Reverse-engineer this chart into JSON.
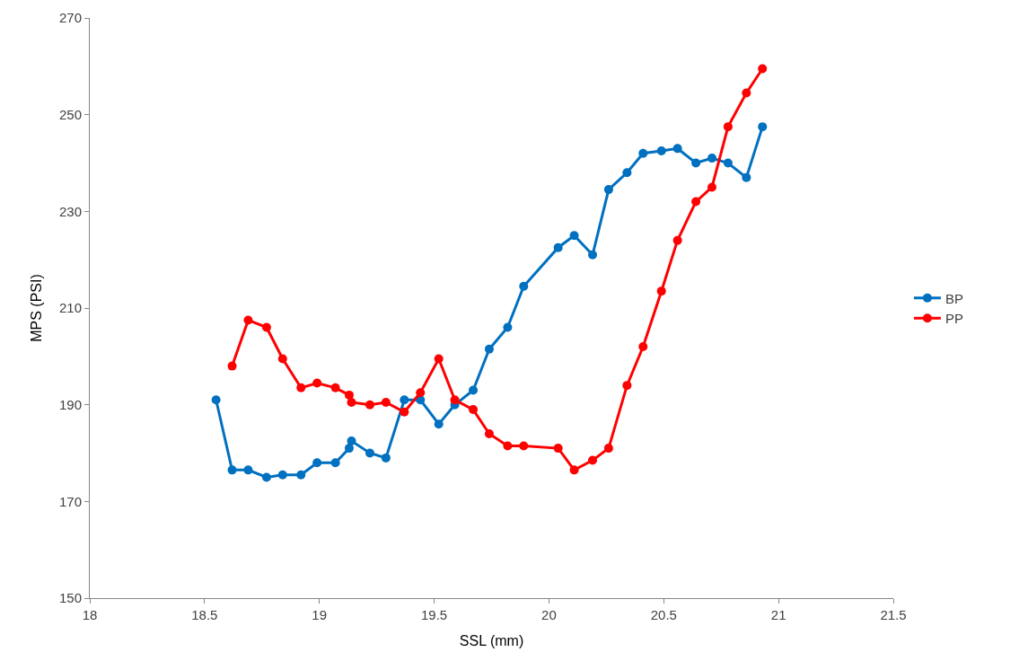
{
  "chart_data": {
    "type": "line",
    "xlabel": "SSL (mm)",
    "ylabel": "MPS (PSI)",
    "xlim": [
      18,
      21.5
    ],
    "xticks": [
      18,
      18.5,
      19,
      19.5,
      20,
      20.5,
      21,
      21.5
    ],
    "ylim": [
      150,
      270
    ],
    "yticks": [
      150,
      170,
      190,
      210,
      230,
      250,
      270
    ],
    "grid": false,
    "legend": "right",
    "marker": "circle",
    "line_style": "solid",
    "series": [
      {
        "name": "BP",
        "color": "#0070c0",
        "x": [
          18.55,
          18.62,
          18.69,
          18.77,
          18.84,
          18.92,
          18.99,
          19.07,
          19.13,
          19.14,
          19.22,
          19.29,
          19.37,
          19.44,
          19.52,
          19.59,
          19.67,
          19.74,
          19.82,
          19.89,
          20.04,
          20.11,
          20.19,
          20.26,
          20.34,
          20.41,
          20.49,
          20.56,
          20.64,
          20.71,
          20.78,
          20.86,
          20.93
        ],
        "values": [
          191,
          176.5,
          176.5,
          175,
          175.5,
          175.5,
          178,
          178,
          181,
          182.5,
          180,
          179,
          191,
          191,
          186,
          190,
          193,
          201.5,
          206,
          214.5,
          222.5,
          225,
          221,
          234.5,
          238,
          242,
          242.5,
          243,
          240,
          241,
          240,
          237,
          247.5
        ]
      },
      {
        "name": "PP",
        "color": "#ff0000",
        "x": [
          18.62,
          18.69,
          18.77,
          18.84,
          18.92,
          18.99,
          19.07,
          19.13,
          19.14,
          19.22,
          19.29,
          19.37,
          19.44,
          19.52,
          19.59,
          19.67,
          19.74,
          19.82,
          19.89,
          20.04,
          20.11,
          20.19,
          20.26,
          20.34,
          20.41,
          20.49,
          20.56,
          20.64,
          20.71,
          20.78,
          20.86,
          20.93
        ],
        "values": [
          198,
          207.5,
          206,
          199.5,
          193.5,
          194.5,
          193.5,
          192,
          190.5,
          190,
          190.5,
          188.5,
          192.5,
          199.5,
          191,
          189,
          184,
          181.5,
          181.5,
          181,
          176.5,
          178.5,
          181,
          194,
          202,
          213.5,
          224,
          232,
          235,
          247.5,
          254.5,
          259.5
        ]
      }
    ]
  }
}
